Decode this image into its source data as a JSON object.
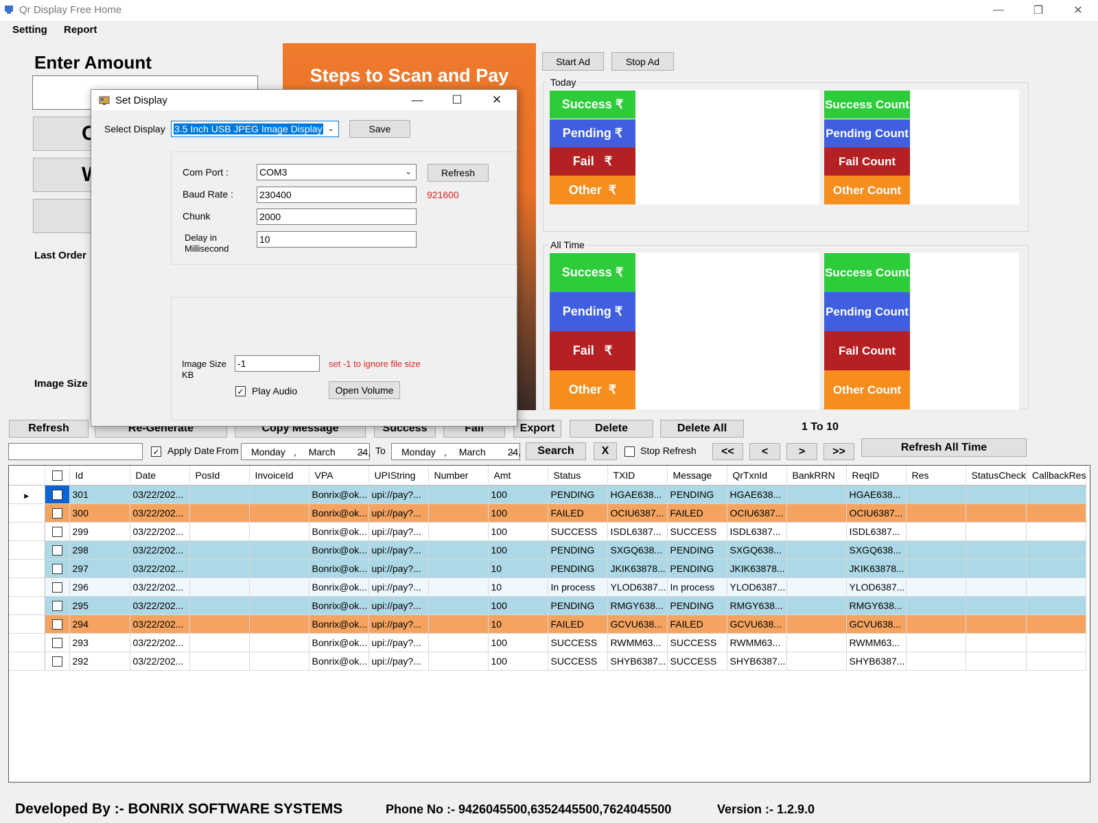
{
  "window": {
    "title": "Qr Display Free Home"
  },
  "menu": [
    "Setting",
    "Report"
  ],
  "left": {
    "enter_amount": "Enter Amount",
    "btn1": "C",
    "btn2": "We",
    "last_order": "Last Order",
    "image_size": "Image Size"
  },
  "banner": {
    "title": "Steps to Scan and Pay"
  },
  "ads": {
    "start": "Start Ad",
    "stop": "Stop Ad"
  },
  "today": {
    "label": "Today",
    "stats": {
      "success": "Success",
      "pending": "Pending",
      "fail": "Fail",
      "other": "Other",
      "currency": "₹"
    },
    "counts": {
      "success": "Success Count",
      "pending": "Pending Count",
      "fail": "Fail Count",
      "other": "Other Count"
    }
  },
  "alltime": {
    "label": "All Time",
    "stats": {
      "success": "Success",
      "pending": "Pending",
      "fail": "Fail",
      "other": "Other",
      "currency": "₹"
    },
    "counts": {
      "success": "Success Count",
      "pending": "Pending Count",
      "fail": "Fail Count",
      "other": "Other Count"
    }
  },
  "dialog": {
    "title": "Set Display",
    "select_display_label": "Select Display",
    "select_display_value": "3.5 Inch USB JPEG Image Display",
    "save": "Save",
    "com_port_label": "Com Port :",
    "com_port_value": "COM3",
    "refresh": "Refresh",
    "baud_rate_label": "Baud Rate :",
    "baud_rate_value": "230400",
    "baud_alt": "921600",
    "chunk_label": "Chunk",
    "chunk_value": "2000",
    "delay_label_1": "Delay in",
    "delay_label_2": "Millisecond",
    "delay_value": "10",
    "image_size_label_1": "Image Size",
    "image_size_label_2": "KB",
    "image_size_value": "-1",
    "image_size_hint": "set -1 to ignore file size",
    "play_audio": "Play Audio",
    "open_volume": "Open Volume"
  },
  "actions": {
    "refresh": "Refresh",
    "regenerate": "Re-Generate",
    "copy_message": "Copy Message",
    "success": "Success",
    "fail": "Fail",
    "export": "Export",
    "delete": "Delete",
    "delete_all": "Delete All",
    "paging": "1 To 10"
  },
  "filter": {
    "apply_date": "Apply Date",
    "from": "From",
    "from_date": {
      "day": "Monday",
      "month": "March",
      "date": "24,"
    },
    "to": "To",
    "to_date": {
      "day": "Monday",
      "month": "March",
      "date": "24,"
    },
    "search": "Search",
    "clear": "X",
    "stop_refresh": "Stop Refresh",
    "first": "<<",
    "prev": "<",
    "next": ">",
    "last": ">>",
    "refresh_all_time": "Refresh All Time"
  },
  "grid": {
    "columns": [
      "Id",
      "Date",
      "PosId",
      "InvoiceId",
      "VPA",
      "UPIString",
      "Number",
      "Amt",
      "Status",
      "TXID",
      "Message",
      "QrTxnId",
      "BankRRN",
      "ReqID",
      "Res",
      "StatusCheck",
      "CallbackRes"
    ],
    "rows": [
      {
        "id": "301",
        "date": "03/22/202...",
        "vpa": "Bonrix@ok...",
        "upi": "upi://pay?...",
        "amt": "100",
        "status": "PENDING",
        "txid": "HGAE638...",
        "message": "PENDING",
        "qrtxnid": "HGAE638...",
        "reqid": "HGAE638...",
        "kind": "pending"
      },
      {
        "id": "300",
        "date": "03/22/202...",
        "vpa": "Bonrix@ok...",
        "upi": "upi://pay?...",
        "amt": "100",
        "status": "FAILED",
        "txid": "OCIU6387...",
        "message": "FAILED",
        "qrtxnid": "OCIU6387...",
        "reqid": "OCIU6387...",
        "kind": "failed"
      },
      {
        "id": "299",
        "date": "03/22/202...",
        "vpa": "Bonrix@ok...",
        "upi": "upi://pay?...",
        "amt": "100",
        "status": "SUCCESS",
        "txid": "ISDL6387...",
        "message": "SUCCESS",
        "qrtxnid": "ISDL6387...",
        "reqid": "ISDL6387...",
        "kind": "success"
      },
      {
        "id": "298",
        "date": "03/22/202...",
        "vpa": "Bonrix@ok...",
        "upi": "upi://pay?...",
        "amt": "100",
        "status": "PENDING",
        "txid": "SXGQ638...",
        "message": "PENDING",
        "qrtxnid": "SXGQ638...",
        "reqid": "SXGQ638...",
        "kind": "pending"
      },
      {
        "id": "297",
        "date": "03/22/202...",
        "vpa": "Bonrix@ok...",
        "upi": "upi://pay?...",
        "amt": "10",
        "status": "PENDING",
        "txid": "JKIK63878...",
        "message": "PENDING",
        "qrtxnid": "JKIK63878...",
        "reqid": "JKIK63878...",
        "kind": "pending"
      },
      {
        "id": "296",
        "date": "03/22/202...",
        "vpa": "Bonrix@ok...",
        "upi": "upi://pay?...",
        "amt": "10",
        "status": "In process",
        "txid": "YLOD6387...",
        "message": "In process",
        "qrtxnid": "YLOD6387...",
        "reqid": "YLOD6387...",
        "kind": "inprocess"
      },
      {
        "id": "295",
        "date": "03/22/202...",
        "vpa": "Bonrix@ok...",
        "upi": "upi://pay?...",
        "amt": "100",
        "status": "PENDING",
        "txid": "RMGY638...",
        "message": "PENDING",
        "qrtxnid": "RMGY638...",
        "reqid": "RMGY638...",
        "kind": "pending"
      },
      {
        "id": "294",
        "date": "03/22/202...",
        "vpa": "Bonrix@ok...",
        "upi": "upi://pay?...",
        "amt": "10",
        "status": "FAILED",
        "txid": "GCVU638...",
        "message": "FAILED",
        "qrtxnid": "GCVU638...",
        "reqid": "GCVU638...",
        "kind": "failed"
      },
      {
        "id": "293",
        "date": "03/22/202...",
        "vpa": "Bonrix@ok...",
        "upi": "upi://pay?...",
        "amt": "100",
        "status": "SUCCESS",
        "txid": "RWMM63...",
        "message": "SUCCESS",
        "qrtxnid": "RWMM63...",
        "reqid": "RWMM63...",
        "kind": "success"
      },
      {
        "id": "292",
        "date": "03/22/202...",
        "vpa": "Bonrix@ok...",
        "upi": "upi://pay?...",
        "amt": "100",
        "status": "SUCCESS",
        "txid": "SHYB6387...",
        "message": "SUCCESS",
        "qrtxnid": "SHYB6387...",
        "reqid": "SHYB6387...",
        "kind": "success"
      }
    ]
  },
  "footer": {
    "developed_by": "Developed By :- BONRIX SOFTWARE SYSTEMS",
    "phone": "Phone No :- 9426045500,6352445500,7624045500",
    "version": "Version :- 1.2.9.0"
  },
  "colors": {
    "success": "#2ecc3b",
    "pending": "#3f5fe0",
    "fail": "#b52122",
    "other": "#f68e1e",
    "row_pending": "#add8e6",
    "row_failed": "#f4a460",
    "hint_red": "#e02020"
  },
  "icons": {
    "app": "app-icon",
    "dialog": "display-icon",
    "minimize": "minimize-icon",
    "maximize": "maximize-icon",
    "close": "close-icon"
  }
}
